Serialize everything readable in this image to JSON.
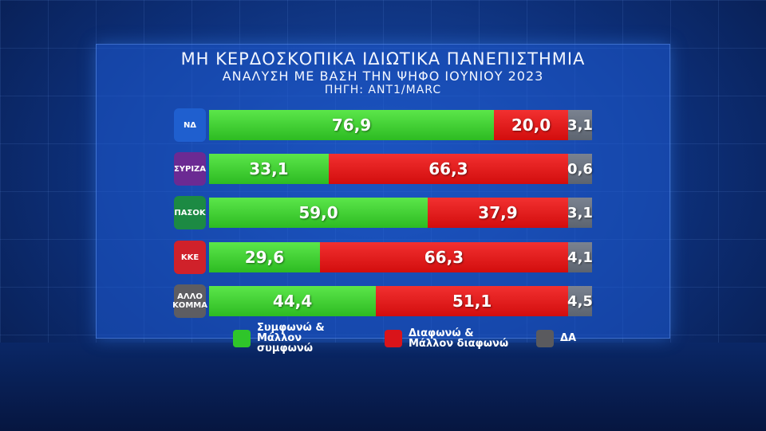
{
  "chart_data": {
    "type": "bar",
    "stacked": true,
    "orientation": "horizontal",
    "title": "ΜΗ ΚΕΡΔΟΣΚΟΠΙΚΑ ΙΔΙΩΤΙΚΑ ΠΑΝΕΠΙΣΤΗΜΙΑ",
    "subtitle": "ΑΝΑΛΥΣΗ ΜΕ ΒΑΣΗ ΤΗΝ ΨΗΦΟ ΙΟΥΝΙΟΥ 2023",
    "source": "ΠΗΓΗ: ANT1/MARC",
    "categories": [
      "ΝΔ",
      "ΣΥΡΙΖΑ",
      "ΠΑΣΟΚ",
      "ΚΚΕ",
      "ΑΛΛΟ ΚΟΜΜΑ"
    ],
    "logos": [
      {
        "text": "ΝΔ",
        "color": "#1f5fcf"
      },
      {
        "text": "ΣΥΡΙΖΑ",
        "color": "#6b2a93"
      },
      {
        "text": "ΠΑΣΟΚ",
        "color": "#1c8a43"
      },
      {
        "text": "ΚΚΕ",
        "color": "#d0212a"
      },
      {
        "text": "ΑΛΛΟ ΚΟΜΜΑ",
        "color": "#5d5d62"
      }
    ],
    "series": [
      {
        "name": "Συμφωνώ & Μάλλον συμφωνώ",
        "color": "#2fc52a",
        "values": [
          76.9,
          33.1,
          59.0,
          29.6,
          44.4
        ],
        "labels": [
          "76,9",
          "33,1",
          "59,0",
          "29,6",
          "44,4"
        ]
      },
      {
        "name": "Διαφωνώ & Μάλλον διαφωνώ",
        "color": "#d9141a",
        "values": [
          20.0,
          66.3,
          37.9,
          66.3,
          51.1
        ],
        "labels": [
          "20,0",
          "66,3",
          "37,9",
          "66,3",
          "51,1"
        ]
      },
      {
        "name": "ΔΑ",
        "color": "#5a5a5e",
        "values": [
          3.1,
          0.6,
          3.1,
          4.1,
          4.5
        ],
        "labels": [
          "3,1",
          "0,6",
          "3,1",
          "4,1",
          "4,5"
        ]
      }
    ],
    "legend": "bottom"
  }
}
